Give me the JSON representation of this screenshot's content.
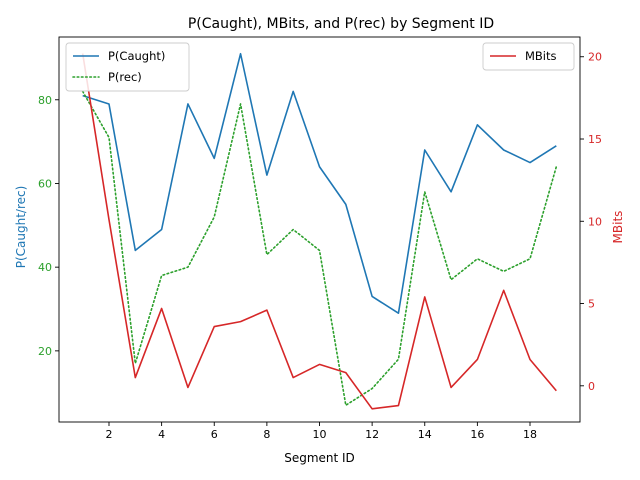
{
  "chart_data": {
    "type": "line",
    "title": "P(Caught), MBits, and P(rec) by Segment ID",
    "xlabel": "Segment ID",
    "ylabel_left": "P(Caught/rec)",
    "ylabel_right": "MBits",
    "x": [
      1,
      2,
      3,
      4,
      5,
      6,
      7,
      8,
      9,
      10,
      11,
      12,
      13,
      14,
      15,
      16,
      17,
      18,
      19
    ],
    "xlim": [
      0.1,
      19.9
    ],
    "xticks": [
      "2",
      "4",
      "6",
      "8",
      "10",
      "12",
      "14",
      "16",
      "18"
    ],
    "ylim_left": [
      3,
      95
    ],
    "yticks_left": [
      "20",
      "40",
      "60",
      "80"
    ],
    "ylim_right": [
      -2.2,
      21.2
    ],
    "yticks_right": [
      "0",
      "5",
      "10",
      "15",
      "20"
    ],
    "series": [
      {
        "name": "P(Caught)",
        "axis": "left",
        "style": "solid",
        "color": "#1f77b4",
        "values": [
          81,
          79,
          44,
          49,
          79,
          66,
          91,
          62,
          82,
          64,
          55,
          33,
          29,
          68,
          58,
          74,
          68,
          65,
          69
        ]
      },
      {
        "name": "P(rec)",
        "axis": "left",
        "style": "dotted",
        "color": "#2ca02c",
        "values": [
          82,
          71,
          17,
          38,
          40,
          52,
          79,
          43,
          49,
          44,
          7,
          11,
          18,
          58,
          37,
          42,
          39,
          42,
          64
        ]
      },
      {
        "name": "MBits",
        "axis": "right",
        "style": "solid",
        "color": "#d62728",
        "values": [
          20.2,
          10.1,
          0.5,
          4.7,
          -0.1,
          3.6,
          3.9,
          4.6,
          0.5,
          1.3,
          0.8,
          -1.4,
          -1.2,
          5.4,
          -0.1,
          1.6,
          5.8,
          1.6,
          -0.3
        ]
      }
    ],
    "legend_left": {
      "placement": "upper-left",
      "entries": [
        "P(Caught)",
        "P(rec)"
      ]
    },
    "legend_right": {
      "placement": "upper-right",
      "entries": [
        "MBits"
      ]
    },
    "grid": false
  }
}
